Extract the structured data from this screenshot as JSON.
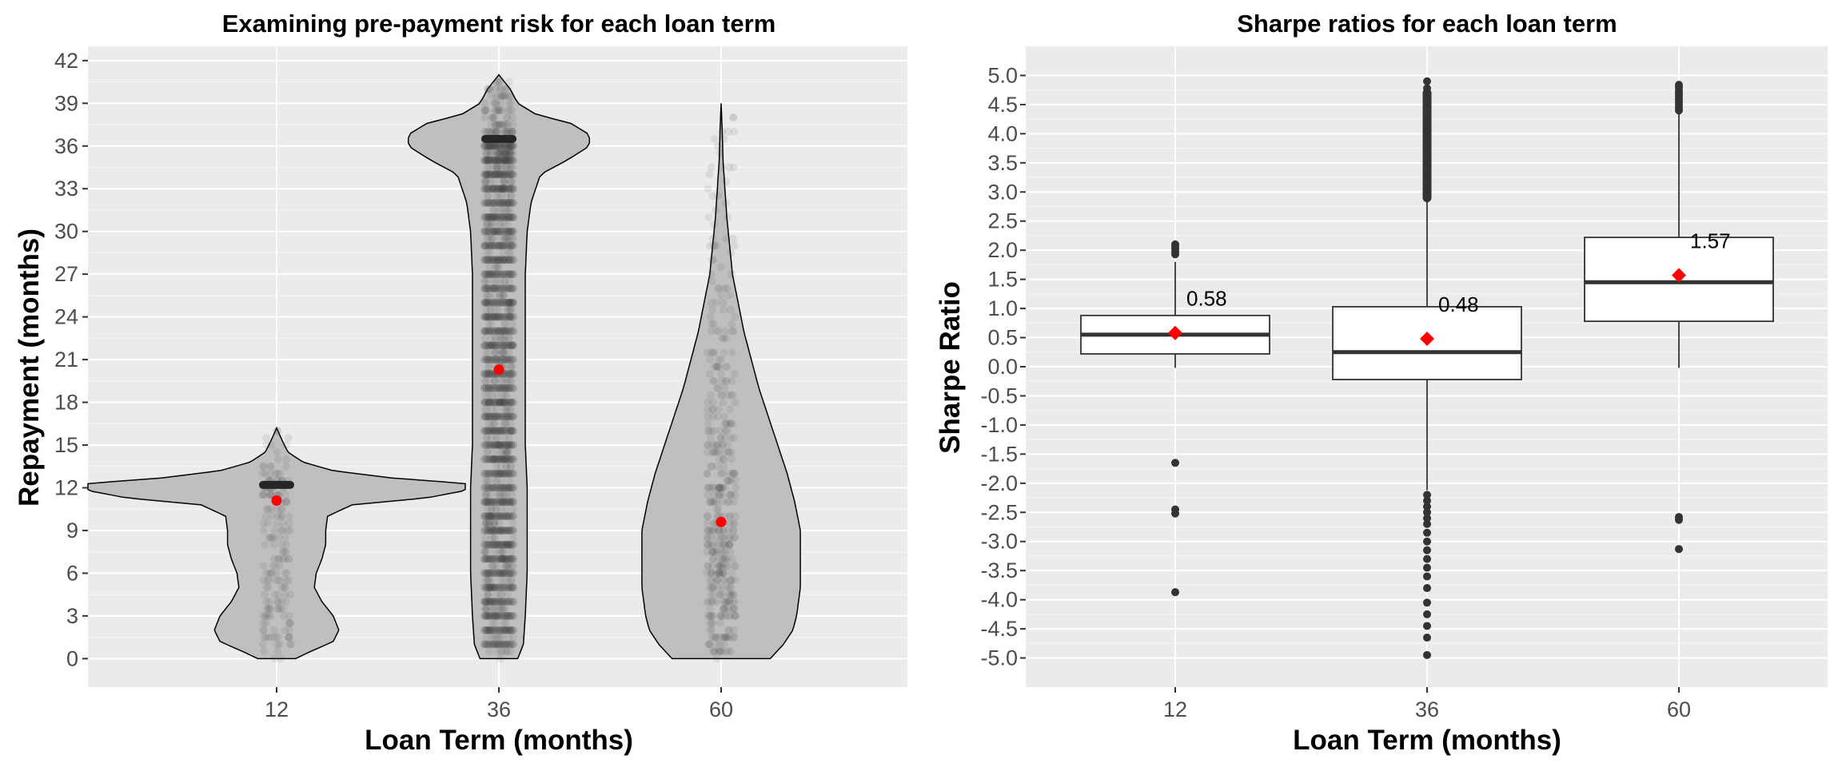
{
  "chart_data": [
    {
      "type": "violin",
      "title": "Examining pre-payment risk for each loan term",
      "xlabel": "Loan Term (months)",
      "ylabel": "Repayment (months)",
      "categories": [
        "12",
        "36",
        "60"
      ],
      "y_ticks": [
        0,
        3,
        6,
        9,
        12,
        15,
        18,
        21,
        24,
        27,
        30,
        33,
        36,
        39,
        42
      ],
      "ylim": [
        -2,
        43
      ],
      "grid": true,
      "means": [
        11.1,
        20.3,
        9.6
      ],
      "series": [
        {
          "category": "12",
          "min": 0,
          "max": 16.2,
          "density_profile": [
            [
              0,
              0.1
            ],
            [
              0.5,
              0.18
            ],
            [
              1.2,
              0.3
            ],
            [
              2,
              0.33
            ],
            [
              3,
              0.3
            ],
            [
              4,
              0.24
            ],
            [
              5,
              0.2
            ],
            [
              6,
              0.21
            ],
            [
              7,
              0.24
            ],
            [
              8,
              0.26
            ],
            [
              9,
              0.26
            ],
            [
              10,
              0.27
            ],
            [
              10.8,
              0.4
            ],
            [
              11.3,
              0.8
            ],
            [
              11.8,
              1.0
            ],
            [
              12.3,
              1.0
            ],
            [
              12.7,
              0.6
            ],
            [
              13.2,
              0.3
            ],
            [
              13.8,
              0.14
            ],
            [
              14.5,
              0.06
            ],
            [
              15.3,
              0.03
            ],
            [
              16.2,
              0.0
            ]
          ],
          "dense_bands": [
            12.2
          ],
          "mean": 11.1
        },
        {
          "category": "36",
          "min": 0,
          "max": 41,
          "density_profile": [
            [
              0,
              0.1
            ],
            [
              1,
              0.13
            ],
            [
              3,
              0.14
            ],
            [
              6,
              0.15
            ],
            [
              9,
              0.15
            ],
            [
              12,
              0.15
            ],
            [
              15,
              0.14
            ],
            [
              18,
              0.14
            ],
            [
              21,
              0.14
            ],
            [
              24,
              0.14
            ],
            [
              27,
              0.14
            ],
            [
              30,
              0.15
            ],
            [
              32,
              0.17
            ],
            [
              34,
              0.22
            ],
            [
              35,
              0.36
            ],
            [
              36,
              0.48
            ],
            [
              36.8,
              0.48
            ],
            [
              37.6,
              0.38
            ],
            [
              38.2,
              0.2
            ],
            [
              39,
              0.1
            ],
            [
              40,
              0.06
            ],
            [
              41,
              0.0
            ]
          ],
          "dense_bands": [
            36.5
          ],
          "mean": 20.3
        },
        {
          "category": "60",
          "min": 0,
          "max": 39,
          "density_profile": [
            [
              0,
              0.26
            ],
            [
              1,
              0.33
            ],
            [
              2,
              0.38
            ],
            [
              3,
              0.4
            ],
            [
              5,
              0.42
            ],
            [
              7,
              0.42
            ],
            [
              9,
              0.42
            ],
            [
              11,
              0.39
            ],
            [
              13,
              0.35
            ],
            [
              15,
              0.3
            ],
            [
              17,
              0.25
            ],
            [
              19,
              0.2
            ],
            [
              21,
              0.16
            ],
            [
              23,
              0.12
            ],
            [
              25,
              0.09
            ],
            [
              27,
              0.06
            ],
            [
              29,
              0.045
            ],
            [
              31,
              0.03
            ],
            [
              33,
              0.02
            ],
            [
              35,
              0.01
            ],
            [
              37,
              0.006
            ],
            [
              39,
              0.0
            ]
          ],
          "dense_bands": [],
          "mean": 9.6
        }
      ]
    },
    {
      "type": "box",
      "title": "Sharpe ratios for each loan term",
      "xlabel": "Loan Term (months)",
      "ylabel": "Sharpe Ratio",
      "categories": [
        "12",
        "36",
        "60"
      ],
      "y_ticks": [
        -5.0,
        -4.5,
        -4.0,
        -3.5,
        -3.0,
        -2.5,
        -2.0,
        -1.5,
        -1.0,
        -0.5,
        0.0,
        0.5,
        1.0,
        1.5,
        2.0,
        2.5,
        3.0,
        3.5,
        4.0,
        4.5,
        5.0
      ],
      "ylim": [
        -5.5,
        5.5
      ],
      "grid": true,
      "series": [
        {
          "category": "12",
          "whisker_low": -0.02,
          "q1": 0.22,
          "median": 0.55,
          "q3": 0.88,
          "whisker_high": 1.8,
          "mean": 0.58,
          "mean_label": "0.58",
          "outliers": [
            2.1,
            2.07,
            2.03,
            1.98,
            1.93,
            -1.65,
            -2.45,
            -2.52,
            -3.87
          ]
        },
        {
          "category": "36",
          "whisker_low": -2.12,
          "q1": -0.22,
          "median": 0.25,
          "q3": 1.03,
          "whisker_high": 2.9,
          "mean": 0.48,
          "mean_label": "0.48",
          "outliers": [
            4.9,
            4.78,
            -2.2,
            -2.3,
            -2.4,
            -2.5,
            -2.6,
            -2.7,
            -2.85,
            -3.0,
            -3.15,
            -3.3,
            -3.45,
            -3.6,
            -3.8,
            -4.05,
            -4.25,
            -4.45,
            -4.65,
            -4.95
          ],
          "outlier_band": [
            2.9,
            4.7
          ]
        },
        {
          "category": "60",
          "whisker_low": -0.02,
          "q1": 0.78,
          "median": 1.45,
          "q3": 2.22,
          "whisker_high": 4.35,
          "mean": 1.57,
          "mean_label": "1.57",
          "outliers": [
            4.4,
            4.45,
            4.5,
            4.55,
            4.6,
            4.65,
            4.7,
            4.75,
            4.8,
            4.84,
            -2.58,
            -2.63,
            -3.13
          ]
        }
      ]
    }
  ],
  "colors": {
    "panel": "#ebebeb",
    "grid_major": "#ffffff",
    "grid_minor": "#f5f5f5",
    "violin_fill": "#bfbfbf",
    "violin_outline": "#000000",
    "points": "#333333",
    "mean_marker": "#ff0000",
    "box_fill": "#ffffff",
    "box_line": "#333333",
    "tick_text": "#4d4d4d"
  }
}
